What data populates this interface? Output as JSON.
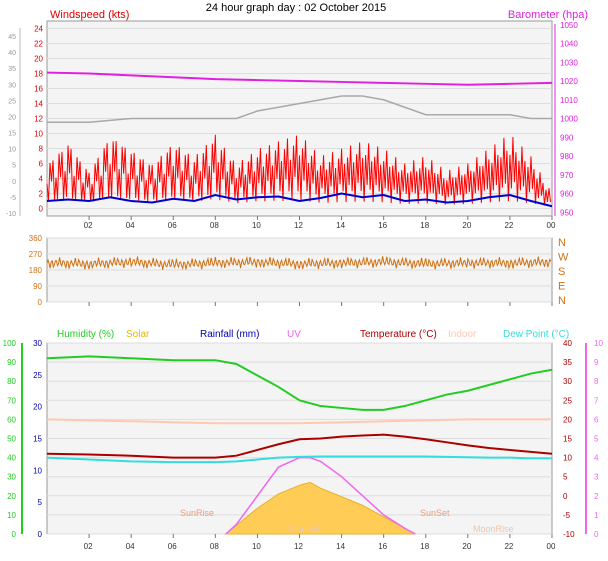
{
  "title": "24 hour graph day : 02 October 2015",
  "time_ticks": [
    "02",
    "04",
    "06",
    "08",
    "10",
    "12",
    "14",
    "16",
    "18",
    "20",
    "22",
    "00"
  ],
  "colors": {
    "windspeed": "#ff0000",
    "avgwind": "#0000cc",
    "gust_hist": "#a8a8a8",
    "barometer": "#e020e0",
    "direction": "#d07010",
    "humidity": "#22cc22",
    "solar": "#ddbb00",
    "rainfall": "#0000aa",
    "uv": "#ee66ee",
    "temperature": "#aa0000",
    "indoor": "#ffc8b0",
    "dewpoint": "#33dddd"
  },
  "chart_data": [
    {
      "type": "line",
      "name": "wind",
      "title": "Windspeed (kts)",
      "ylabel": "Windspeed (kts)",
      "y2label": "Barometer (hpa)",
      "ylim": [
        -1,
        25
      ],
      "y_ticks": [
        24,
        22,
        20,
        18,
        16,
        14,
        12,
        10,
        8,
        6,
        4,
        2,
        0
      ],
      "y_outer_ticks": [
        45,
        40,
        35,
        30,
        25,
        20,
        15,
        10,
        5,
        0,
        -5,
        -10
      ],
      "y2lim": [
        948,
        1052
      ],
      "y2_ticks": [
        1050,
        1040,
        1030,
        1020,
        1010,
        1000,
        990,
        980,
        970,
        960,
        950
      ],
      "xlim": [
        0,
        24
      ],
      "series": [
        {
          "name": "Barometer",
          "axis": "y2",
          "x": [
            0,
            2,
            4,
            6,
            8,
            10,
            12,
            14,
            16,
            18,
            20,
            22,
            24
          ],
          "values": [
            1024.5,
            1024,
            1023,
            1022,
            1021,
            1020.5,
            1020,
            1019.5,
            1019,
            1018.5,
            1018,
            1018.5,
            1019
          ]
        },
        {
          "name": "Windspeed",
          "x": [
            0,
            1,
            2,
            3,
            4,
            5,
            6,
            7,
            8,
            9,
            10,
            11,
            12,
            13,
            14,
            15,
            16,
            17,
            18,
            19,
            20,
            21,
            22,
            23,
            24
          ],
          "values": [
            6,
            9,
            5,
            10,
            8,
            6,
            9,
            7,
            10,
            6,
            8,
            9,
            10,
            7,
            8,
            9,
            8,
            6,
            7,
            5,
            6,
            8,
            10,
            7,
            2
          ]
        },
        {
          "name": "Average",
          "x": [
            0,
            1,
            2,
            3,
            4,
            5,
            6,
            7,
            8,
            9,
            10,
            11,
            12,
            13,
            14,
            15,
            16,
            17,
            18,
            19,
            20,
            21,
            22,
            23,
            24
          ],
          "values": [
            1,
            1.2,
            1,
            1.5,
            1,
            0.8,
            1.3,
            1,
            1.8,
            1.2,
            1.5,
            1.6,
            1,
            1.4,
            2,
            1.5,
            1.8,
            1,
            1.2,
            0.8,
            1,
            1.5,
            1.8,
            1,
            0.3
          ]
        },
        {
          "x": [
            0,
            2,
            4,
            6,
            8,
            9,
            10,
            11,
            12,
            13,
            14,
            15,
            16,
            17,
            18,
            20,
            22,
            23,
            24
          ],
          "values": [
            11.5,
            11.5,
            12,
            12,
            12,
            12,
            13,
            13.5,
            14,
            14.5,
            15,
            15,
            14.5,
            13.5,
            12.5,
            12.5,
            12.5,
            12,
            12
          ]
        }
      ]
    },
    {
      "type": "scatter",
      "name": "direction",
      "ylim": [
        0,
        360
      ],
      "y_ticks": [
        360,
        270,
        180,
        90,
        0
      ],
      "y2_labels": [
        "N",
        "W",
        "S",
        "E",
        "N"
      ],
      "series": [
        {
          "name": "Direction",
          "x": [
            0,
            2,
            4,
            6,
            8,
            10,
            12,
            14,
            16,
            18,
            20,
            22,
            24
          ],
          "values": [
            220,
            215,
            225,
            210,
            220,
            225,
            215,
            220,
            225,
            215,
            220,
            220,
            225
          ]
        }
      ]
    },
    {
      "type": "line",
      "name": "temp-hum",
      "legend": [
        "Humidity (%)",
        "Solar",
        "Rainfall (mm)",
        "UV",
        "Temperature (°C)",
        "Indoor",
        "Dew Point (°C)"
      ],
      "y_left_ticks": [
        100,
        90,
        80,
        70,
        60,
        50,
        40,
        30,
        20,
        10,
        0
      ],
      "y_left2_ticks": [
        30,
        25,
        20,
        15,
        10,
        5,
        0
      ],
      "y_right_ticks": [
        40,
        35,
        30,
        25,
        20,
        15,
        10,
        5,
        0,
        -5,
        -10
      ],
      "y_right2_ticks": [
        10,
        9,
        8,
        7,
        6,
        5,
        4,
        3,
        2,
        1,
        0
      ],
      "labels": {
        "sunrise": "SunRise",
        "sunset": "SunSet",
        "moonset": "MoonSet",
        "moonrise": "MoonRise"
      },
      "series": [
        {
          "name": "Humidity (%)",
          "x": [
            0,
            2,
            4,
            6,
            8,
            9,
            10,
            11,
            12,
            13,
            14,
            15,
            16,
            17,
            18,
            19,
            20,
            21,
            22,
            23,
            24
          ],
          "values": [
            92,
            93,
            92,
            91,
            91,
            89,
            83,
            77,
            70,
            67,
            66,
            65,
            65,
            67,
            70,
            73,
            75,
            78,
            81,
            84,
            86
          ]
        },
        {
          "name": "Temperature (°C)",
          "x": [
            0,
            2,
            4,
            6,
            8,
            9,
            10,
            11,
            12,
            13,
            14,
            15,
            16,
            17,
            18,
            19,
            20,
            21,
            22,
            23,
            24
          ],
          "values": [
            11,
            10.8,
            10.5,
            10,
            10,
            10.5,
            12,
            13.5,
            14.8,
            15,
            15.5,
            15.8,
            16,
            15.5,
            14.8,
            14,
            13.2,
            12.5,
            12,
            11.5,
            11
          ]
        },
        {
          "name": "Dew Point (°C)",
          "x": [
            0,
            2,
            4,
            6,
            8,
            9,
            10,
            11,
            12,
            13,
            14,
            15,
            16,
            17,
            18,
            19,
            20,
            21,
            22,
            23,
            24
          ],
          "values": [
            10,
            9.5,
            9,
            8.8,
            8.8,
            9,
            9.5,
            10,
            10.2,
            10.3,
            10.3,
            10.3,
            10.3,
            10.3,
            10.3,
            10.2,
            10.1,
            10,
            10,
            9.8,
            9.8
          ]
        },
        {
          "name": "Indoor",
          "x": [
            0,
            4,
            8,
            12,
            16,
            20,
            24
          ],
          "values": [
            20,
            19.5,
            19,
            19,
            19.5,
            20,
            20
          ]
        },
        {
          "name": "Solar",
          "x": [
            8.5,
            9,
            10,
            11,
            12,
            12.5,
            13,
            14,
            15,
            16,
            17,
            17.5
          ],
          "values": [
            0,
            1.5,
            4.5,
            7,
            8.5,
            9,
            8,
            6.5,
            5,
            3,
            1,
            0
          ]
        },
        {
          "name": "UV",
          "x": [
            8.5,
            9,
            10,
            11,
            12,
            12.5,
            13,
            14,
            15,
            16,
            17,
            17.5
          ],
          "values": [
            0,
            0.5,
            2,
            3.5,
            4,
            4,
            3.8,
            3,
            2,
            1,
            0.3,
            0
          ]
        }
      ]
    }
  ]
}
